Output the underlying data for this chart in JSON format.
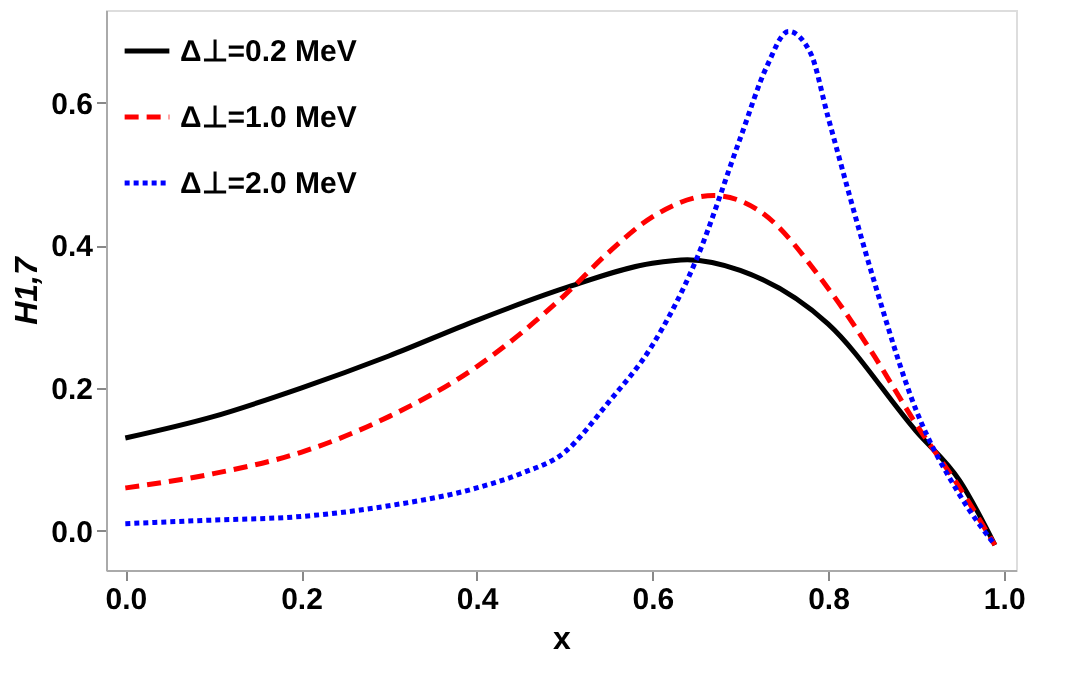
{
  "chart_data": {
    "type": "line",
    "xlabel": "x",
    "ylabel": "H1,7",
    "xlim": [
      -0.022,
      1.014
    ],
    "ylim": [
      -0.055,
      0.73
    ],
    "xticks": [
      {
        "value": 0,
        "label": "0.0"
      },
      {
        "value": 0.2,
        "label": "0.2"
      },
      {
        "value": 0.4,
        "label": "0.4"
      },
      {
        "value": 0.6,
        "label": "0.6"
      },
      {
        "value": 0.8,
        "label": "0.8"
      },
      {
        "value": 1,
        "label": "1.0"
      }
    ],
    "yticks": [
      {
        "value": 0,
        "label": "0.0"
      },
      {
        "value": 0.2,
        "label": "0.2"
      },
      {
        "value": 0.4,
        "label": "0.4"
      },
      {
        "value": 0.6,
        "label": "0.6"
      }
    ],
    "grid": false,
    "legend": "top left",
    "marker": "none",
    "series": [
      {
        "name": "Δ⊥=0.2 MeV",
        "color": "#000000",
        "line_style": "solid",
        "x": [
          0,
          0.1,
          0.2,
          0.3,
          0.4,
          0.5,
          0.6,
          0.64,
          0.7,
          0.8,
          0.9,
          0.95,
          0.99
        ],
        "values": [
          0.13,
          0.16,
          0.2,
          0.245,
          0.295,
          0.34,
          0.375,
          0.38,
          0.365,
          0.29,
          0.14,
          0.07,
          -0.02
        ]
      },
      {
        "name": "Δ⊥=1.0 MeV",
        "color": "#ff0000",
        "line_style": "dashed",
        "x": [
          0,
          0.1,
          0.2,
          0.3,
          0.4,
          0.5,
          0.55,
          0.6,
          0.67,
          0.72,
          0.8,
          0.85,
          0.9,
          0.95,
          0.99
        ],
        "values": [
          0.06,
          0.08,
          0.11,
          0.16,
          0.23,
          0.33,
          0.39,
          0.44,
          0.47,
          0.45,
          0.34,
          0.25,
          0.15,
          0.06,
          -0.02
        ]
      },
      {
        "name": "Δ⊥=2.0 MeV",
        "color": "#0000ff",
        "line_style": "dotted",
        "x": [
          0,
          0.1,
          0.2,
          0.3,
          0.4,
          0.45,
          0.5,
          0.55,
          0.6,
          0.65,
          0.7,
          0.73,
          0.755,
          0.78,
          0.8,
          0.85,
          0.9,
          0.95,
          0.99
        ],
        "values": [
          0.01,
          0.015,
          0.02,
          0.035,
          0.06,
          0.08,
          0.11,
          0.18,
          0.26,
          0.38,
          0.55,
          0.65,
          0.7,
          0.67,
          0.58,
          0.36,
          0.17,
          0.05,
          -0.02
        ]
      }
    ]
  }
}
